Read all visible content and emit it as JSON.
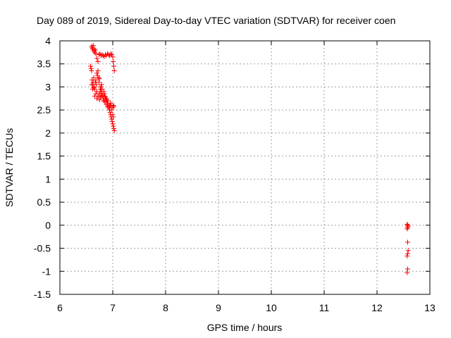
{
  "chart_data": {
    "type": "scatter",
    "title": "Day 089 of 2019, Sidereal Day-to-day VTEC variation (SDTVAR) for receiver coen",
    "xlabel": "GPS time / hours",
    "ylabel": "SDTVAR / TECUs",
    "xlim": [
      6,
      13
    ],
    "ylim": [
      -1.5,
      4
    ],
    "xticks": [
      6,
      7,
      8,
      9,
      10,
      11,
      12,
      13
    ],
    "yticks": [
      -1.5,
      -1,
      -0.5,
      0,
      0.5,
      1,
      1.5,
      2,
      2.5,
      3,
      3.5,
      4
    ],
    "xtick_labels": [
      "6",
      "7",
      "8",
      "9",
      "10",
      "11",
      "12",
      "13"
    ],
    "ytick_labels": [
      "-1.5",
      "-1",
      "-0.5",
      "0",
      "0.5",
      "1",
      "1.5",
      "2",
      "2.5",
      "3",
      "3.5",
      "4"
    ],
    "grid": true,
    "marker": "+",
    "color": "#ff0000",
    "series": [
      {
        "name": "SDTVAR",
        "points": [
          [
            6.6,
            3.88
          ],
          [
            6.61,
            3.85
          ],
          [
            6.62,
            3.82
          ],
          [
            6.63,
            3.9
          ],
          [
            6.64,
            3.78
          ],
          [
            6.65,
            3.82
          ],
          [
            6.66,
            3.75
          ],
          [
            6.67,
            3.8
          ],
          [
            6.68,
            3.72
          ],
          [
            6.7,
            3.62
          ],
          [
            6.72,
            3.55
          ],
          [
            6.74,
            3.7
          ],
          [
            6.76,
            3.72
          ],
          [
            6.78,
            3.68
          ],
          [
            6.8,
            3.7
          ],
          [
            6.82,
            3.68
          ],
          [
            6.84,
            3.66
          ],
          [
            6.86,
            3.7
          ],
          [
            6.88,
            3.68
          ],
          [
            6.9,
            3.72
          ],
          [
            6.92,
            3.7
          ],
          [
            6.94,
            3.68
          ],
          [
            6.96,
            3.72
          ],
          [
            6.98,
            3.7
          ],
          [
            7.0,
            3.65
          ],
          [
            7.01,
            3.55
          ],
          [
            7.02,
            3.45
          ],
          [
            7.03,
            3.35
          ],
          [
            6.58,
            3.45
          ],
          [
            6.59,
            3.4
          ],
          [
            6.6,
            3.35
          ],
          [
            6.61,
            3.15
          ],
          [
            6.62,
            3.05
          ],
          [
            6.6,
            3.05
          ],
          [
            6.63,
            3.1
          ],
          [
            6.64,
            3.2
          ],
          [
            6.65,
            3.0
          ],
          [
            6.66,
            2.95
          ],
          [
            6.67,
            3.1
          ],
          [
            6.68,
            3.15
          ],
          [
            6.69,
            3.05
          ],
          [
            6.7,
            3.3
          ],
          [
            6.71,
            3.25
          ],
          [
            6.72,
            3.35
          ],
          [
            6.73,
            3.2
          ],
          [
            6.74,
            3.1
          ],
          [
            6.75,
            3.18
          ],
          [
            6.76,
            3.0
          ],
          [
            6.77,
            2.95
          ],
          [
            6.78,
            2.9
          ],
          [
            6.8,
            2.85
          ],
          [
            6.81,
            2.8
          ],
          [
            6.82,
            2.75
          ],
          [
            6.83,
            2.9
          ],
          [
            6.84,
            2.85
          ],
          [
            6.85,
            2.8
          ],
          [
            6.86,
            2.78
          ],
          [
            6.87,
            2.72
          ],
          [
            6.88,
            2.75
          ],
          [
            6.89,
            2.7
          ],
          [
            6.9,
            2.65
          ],
          [
            6.91,
            2.7
          ],
          [
            6.92,
            2.6
          ],
          [
            6.93,
            2.55
          ],
          [
            6.94,
            2.5
          ],
          [
            6.95,
            2.45
          ],
          [
            6.96,
            2.4
          ],
          [
            6.97,
            2.35
          ],
          [
            6.98,
            2.3
          ],
          [
            6.99,
            2.25
          ],
          [
            7.0,
            2.2
          ],
          [
            7.01,
            2.15
          ],
          [
            7.02,
            2.1
          ],
          [
            7.03,
            2.05
          ],
          [
            7.0,
            2.55
          ],
          [
            7.01,
            2.6
          ],
          [
            7.02,
            2.58
          ],
          [
            7.0,
            2.4
          ],
          [
            7.01,
            2.35
          ],
          [
            6.98,
            2.5
          ],
          [
            6.97,
            2.6
          ],
          [
            6.96,
            2.65
          ],
          [
            6.7,
            2.75
          ],
          [
            6.72,
            2.8
          ],
          [
            6.74,
            2.85
          ],
          [
            6.76,
            2.9
          ],
          [
            6.78,
            3.0
          ],
          [
            6.79,
            3.05
          ],
          [
            6.8,
            2.95
          ],
          [
            6.66,
            2.8
          ],
          [
            6.68,
            2.85
          ],
          [
            6.7,
            2.9
          ],
          [
            6.62,
            2.95
          ],
          [
            6.64,
            2.98
          ],
          [
            6.75,
            2.72
          ],
          [
            6.77,
            2.78
          ],
          [
            6.79,
            2.82
          ],
          [
            6.83,
            2.7
          ],
          [
            6.85,
            2.68
          ],
          [
            6.88,
            2.62
          ],
          [
            6.9,
            2.58
          ],
          [
            6.92,
            2.55
          ],
          [
            6.94,
            2.6
          ],
          [
            6.95,
            2.58
          ],
          [
            12.57,
            0.02
          ],
          [
            12.58,
            0.0
          ],
          [
            12.59,
            -0.02
          ],
          [
            12.58,
            -0.05
          ],
          [
            12.57,
            -0.08
          ],
          [
            12.58,
            -0.37
          ],
          [
            12.59,
            -0.55
          ],
          [
            12.58,
            -0.62
          ],
          [
            12.57,
            -0.67
          ],
          [
            12.58,
            -0.95
          ],
          [
            12.57,
            -1.03
          ]
        ]
      }
    ]
  }
}
